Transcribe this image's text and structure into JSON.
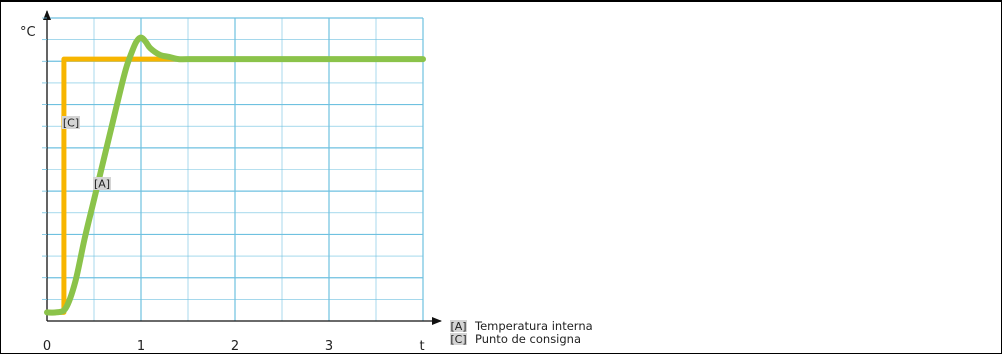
{
  "chart_data": {
    "type": "line",
    "title": "",
    "ylabel": "°C",
    "xlabel": "t",
    "x_ticks": [
      "0",
      "1",
      "2",
      "3"
    ],
    "xlim": [
      0,
      4
    ],
    "ylim": [
      0,
      7
    ],
    "grid": true,
    "legend_position": "bottom-right",
    "series": [
      {
        "key": "A",
        "tag": "[A]",
        "name": "Temperatura interna",
        "color": "#8bc34a",
        "x": [
          0,
          0.1,
          0.2,
          0.3,
          0.4,
          0.5,
          0.6,
          0.7,
          0.8,
          0.85,
          0.9,
          0.95,
          1.0,
          1.05,
          1.1,
          1.2,
          1.3,
          1.4,
          1.5,
          2.0,
          3.0,
          4.0
        ],
        "y": [
          0.2,
          0.2,
          0.3,
          0.9,
          1.9,
          2.8,
          3.7,
          4.6,
          5.5,
          5.9,
          6.2,
          6.45,
          6.55,
          6.45,
          6.3,
          6.15,
          6.1,
          6.05,
          6.05,
          6.05,
          6.05,
          6.05
        ]
      },
      {
        "key": "C",
        "tag": "[C]",
        "name": "Punto de consigna",
        "color": "#f7b500",
        "x": [
          0,
          0.18,
          0.18,
          4.0
        ],
        "y": [
          0.2,
          0.2,
          6.05,
          6.05
        ]
      }
    ],
    "annotations": [
      {
        "text": "[C]",
        "series": "C"
      },
      {
        "text": "[A]",
        "series": "A"
      }
    ]
  }
}
